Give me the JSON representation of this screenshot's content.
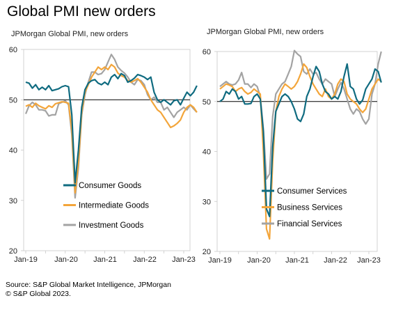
{
  "title": "Global PMI new orders",
  "footer": {
    "source": "S&P Global Market Intelligence, JPMorgan",
    "copyright": "© S&P Global 2023."
  },
  "chart_data": [
    {
      "type": "line",
      "title": "JPMorgan Global PMI, new orders",
      "xlabel": "",
      "ylabel": "",
      "ylim": [
        20,
        60
      ],
      "yticks": [
        20,
        30,
        40,
        50,
        60
      ],
      "xtick_labels": [
        "Jan-19",
        "Jan-20",
        "Jan-21",
        "Jan-22",
        "Jan-23"
      ],
      "x_start": "2019-01",
      "x_end": "2023-05",
      "reference_line": 50,
      "legend_position": "bottom-right",
      "series": [
        {
          "name": "Consumer Goods",
          "color": "#0f6b80",
          "values": [
            53.5,
            53.3,
            52.3,
            53.0,
            52.0,
            52.5,
            52.0,
            52.8,
            51.8,
            52.0,
            52.2,
            52.6,
            52.8,
            52.6,
            47.0,
            33.5,
            40.0,
            48.5,
            52.0,
            53.3,
            53.8,
            54.0,
            53.3,
            53.0,
            53.5,
            53.0,
            54.5,
            55.0,
            54.2,
            55.2,
            54.8,
            53.5,
            53.8,
            54.3,
            55.0,
            54.8,
            54.5,
            54.0,
            54.5,
            51.5,
            50.0,
            49.5,
            50.0,
            49.5,
            49.0,
            49.8,
            50.0,
            49.0,
            50.3,
            51.5,
            50.8,
            51.5,
            52.8
          ]
        },
        {
          "name": "Intermediate Goods",
          "color": "#f3a53a",
          "values": [
            48.7,
            49.0,
            48.5,
            49.3,
            48.8,
            48.5,
            48.2,
            48.8,
            48.5,
            49.2,
            49.4,
            49.6,
            49.5,
            49.3,
            44.0,
            31.5,
            37.5,
            47.5,
            51.5,
            53.0,
            54.5,
            55.5,
            56.5,
            56.0,
            56.5,
            56.0,
            57.0,
            56.5,
            55.3,
            54.8,
            54.5,
            53.8,
            53.5,
            53.8,
            54.2,
            53.5,
            52.5,
            51.5,
            50.0,
            49.0,
            48.0,
            47.5,
            46.5,
            45.5,
            44.5,
            44.8,
            45.3,
            46.0,
            47.5,
            48.5,
            49.0,
            48.5,
            47.5
          ]
        },
        {
          "name": "Investment Goods",
          "color": "#a3a3a3",
          "values": [
            47.2,
            48.8,
            49.5,
            49.0,
            48.0,
            48.0,
            47.8,
            46.8,
            47.0,
            47.0,
            49.2,
            49.5,
            49.8,
            49.0,
            43.0,
            30.5,
            36.5,
            47.0,
            51.0,
            53.5,
            55.5,
            55.5,
            55.0,
            55.2,
            56.0,
            57.5,
            59.0,
            58.0,
            56.5,
            55.8,
            55.3,
            54.5,
            53.5,
            53.0,
            54.0,
            53.8,
            53.0,
            51.0,
            50.0,
            50.5,
            49.5,
            49.5,
            48.0,
            48.5,
            47.5,
            46.5,
            47.5,
            48.0,
            48.5,
            48.0,
            49.0,
            48.2,
            47.5
          ]
        }
      ]
    },
    {
      "type": "line",
      "title": "JPMorgan Global PMI, new orders",
      "xlabel": "",
      "ylabel": "",
      "ylim": [
        20,
        60
      ],
      "yticks": [
        20,
        30,
        40,
        50,
        60
      ],
      "xtick_labels": [
        "Jan-19",
        "Jan-20",
        "Jan-21",
        "Jan-22",
        "Jan-23"
      ],
      "x_start": "2019-01",
      "x_end": "2023-05",
      "reference_line": 50,
      "legend_position": "bottom-right",
      "series": [
        {
          "name": "Consumer Services",
          "color": "#0f6b80",
          "values": [
            50.0,
            50.5,
            52.0,
            51.5,
            52.5,
            52.0,
            50.5,
            51.0,
            49.5,
            49.5,
            49.6,
            51.0,
            51.5,
            50.5,
            44.0,
            28.5,
            27.0,
            41.0,
            48.0,
            49.5,
            51.0,
            51.5,
            51.0,
            50.0,
            48.5,
            46.5,
            46.0,
            47.5,
            51.0,
            52.5,
            55.0,
            57.0,
            56.0,
            53.5,
            52.0,
            51.5,
            50.5,
            51.0,
            50.5,
            52.0,
            55.0,
            57.5,
            53.0,
            52.5,
            50.5,
            49.5,
            50.3,
            52.5,
            53.5,
            54.5,
            56.5,
            56.0,
            53.8
          ]
        },
        {
          "name": "Business Services",
          "color": "#f3a53a",
          "values": [
            52.5,
            53.0,
            53.5,
            53.3,
            53.0,
            52.0,
            52.5,
            52.8,
            52.0,
            51.5,
            51.8,
            52.5,
            52.0,
            51.5,
            40.0,
            24.5,
            22.5,
            38.0,
            48.0,
            51.0,
            52.5,
            53.5,
            53.0,
            52.5,
            53.0,
            54.0,
            55.5,
            57.5,
            56.8,
            55.0,
            53.5,
            52.5,
            51.5,
            51.0,
            52.5,
            51.0,
            50.5,
            51.5,
            53.5,
            54.5,
            54.0,
            51.5,
            50.5,
            50.0,
            49.5,
            48.5,
            47.8,
            48.5,
            50.5,
            52.5,
            53.5,
            54.5,
            54.0
          ]
        },
        {
          "name": "Financial Services",
          "color": "#a3a3a3",
          "values": [
            53.0,
            53.5,
            54.0,
            53.5,
            53.3,
            53.5,
            54.3,
            55.8,
            53.5,
            53.5,
            52.8,
            53.5,
            53.0,
            51.0,
            44.5,
            34.5,
            35.5,
            47.0,
            51.5,
            52.5,
            53.5,
            54.0,
            55.5,
            57.0,
            60.2,
            59.5,
            59.0,
            56.0,
            55.5,
            56.5,
            55.5,
            55.8,
            54.5,
            53.5,
            54.5,
            54.0,
            53.5,
            51.0,
            52.5,
            53.8,
            52.5,
            50.5,
            48.5,
            47.5,
            48.5,
            48.0,
            46.5,
            45.5,
            46.5,
            51.5,
            53.5,
            57.5,
            60.0
          ]
        }
      ]
    }
  ]
}
